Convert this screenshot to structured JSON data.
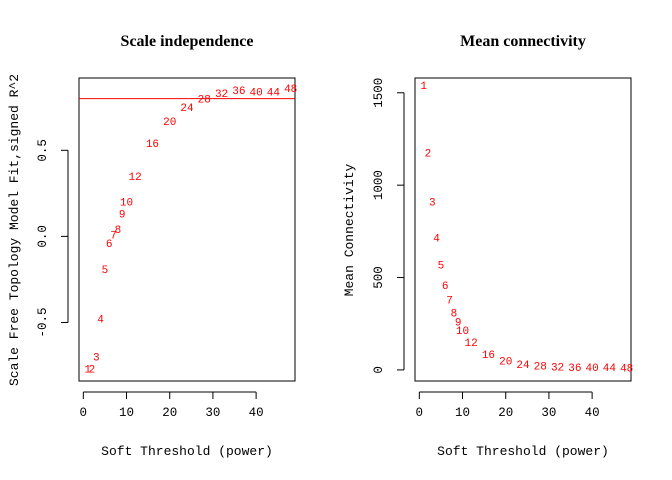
{
  "chart_data": [
    {
      "type": "scatter",
      "marker": "text-labels",
      "title": "Scale independence",
      "xlabel": "Soft Threshold (power)",
      "ylabel": "Scale Free Topology Model Fit,signed R^2",
      "xlim": [
        -1,
        49
      ],
      "ylim": [
        -0.84,
        0.92
      ],
      "xticks": [
        0,
        10,
        20,
        30,
        40
      ],
      "yticks": [
        -0.5,
        0.0,
        0.5
      ],
      "xtick_labels": [
        "0",
        "10",
        "20",
        "30",
        "40"
      ],
      "ytick_labels": [
        "-0.5",
        "0.0",
        "0.5"
      ],
      "grid": false,
      "point_color": "#ff0000",
      "hline": {
        "y": 0.8,
        "color": "#ff0000"
      },
      "points": [
        {
          "x": 1,
          "y": -0.78,
          "label": "1"
        },
        {
          "x": 2,
          "y": -0.78,
          "label": "2"
        },
        {
          "x": 3,
          "y": -0.71,
          "label": "3"
        },
        {
          "x": 4,
          "y": -0.49,
          "label": "4"
        },
        {
          "x": 5,
          "y": -0.2,
          "label": "5"
        },
        {
          "x": 6,
          "y": -0.05,
          "label": "6"
        },
        {
          "x": 7,
          "y": 0.0,
          "label": "7"
        },
        {
          "x": 8,
          "y": 0.03,
          "label": "8"
        },
        {
          "x": 9,
          "y": 0.12,
          "label": "9"
        },
        {
          "x": 10,
          "y": 0.19,
          "label": "10"
        },
        {
          "x": 12,
          "y": 0.34,
          "label": "12"
        },
        {
          "x": 16,
          "y": 0.53,
          "label": "16"
        },
        {
          "x": 20,
          "y": 0.66,
          "label": "20"
        },
        {
          "x": 24,
          "y": 0.74,
          "label": "24"
        },
        {
          "x": 28,
          "y": 0.79,
          "label": "28"
        },
        {
          "x": 32,
          "y": 0.82,
          "label": "32"
        },
        {
          "x": 36,
          "y": 0.84,
          "label": "36"
        },
        {
          "x": 40,
          "y": 0.83,
          "label": "40"
        },
        {
          "x": 44,
          "y": 0.83,
          "label": "44"
        },
        {
          "x": 48,
          "y": 0.85,
          "label": "48"
        }
      ]
    },
    {
      "type": "scatter",
      "marker": "text-labels",
      "title": "Mean connectivity",
      "xlabel": "Soft Threshold (power)",
      "ylabel": "Mean Connectivity",
      "xlim": [
        -1,
        49
      ],
      "ylim": [
        -60,
        1580
      ],
      "xticks": [
        0,
        10,
        20,
        30,
        40
      ],
      "yticks": [
        0,
        500,
        1000,
        1500
      ],
      "xtick_labels": [
        "0",
        "10",
        "20",
        "30",
        "40"
      ],
      "ytick_labels": [
        "0",
        "500",
        "1000",
        "1500"
      ],
      "grid": false,
      "point_color": "#ff0000",
      "points": [
        {
          "x": 1,
          "y": 1530,
          "label": "1"
        },
        {
          "x": 2,
          "y": 1165,
          "label": "2"
        },
        {
          "x": 3,
          "y": 900,
          "label": "3"
        },
        {
          "x": 4,
          "y": 705,
          "label": "4"
        },
        {
          "x": 5,
          "y": 560,
          "label": "5"
        },
        {
          "x": 6,
          "y": 450,
          "label": "6"
        },
        {
          "x": 7,
          "y": 370,
          "label": "7"
        },
        {
          "x": 8,
          "y": 300,
          "label": "8"
        },
        {
          "x": 9,
          "y": 250,
          "label": "9"
        },
        {
          "x": 10,
          "y": 205,
          "label": "10"
        },
        {
          "x": 12,
          "y": 140,
          "label": "12"
        },
        {
          "x": 16,
          "y": 75,
          "label": "16"
        },
        {
          "x": 20,
          "y": 40,
          "label": "20"
        },
        {
          "x": 24,
          "y": 20,
          "label": "24"
        },
        {
          "x": 28,
          "y": 12,
          "label": "28"
        },
        {
          "x": 32,
          "y": 8,
          "label": "32"
        },
        {
          "x": 36,
          "y": 6,
          "label": "36"
        },
        {
          "x": 40,
          "y": 5,
          "label": "40"
        },
        {
          "x": 44,
          "y": 4,
          "label": "44"
        },
        {
          "x": 48,
          "y": 3,
          "label": "48"
        }
      ]
    }
  ]
}
